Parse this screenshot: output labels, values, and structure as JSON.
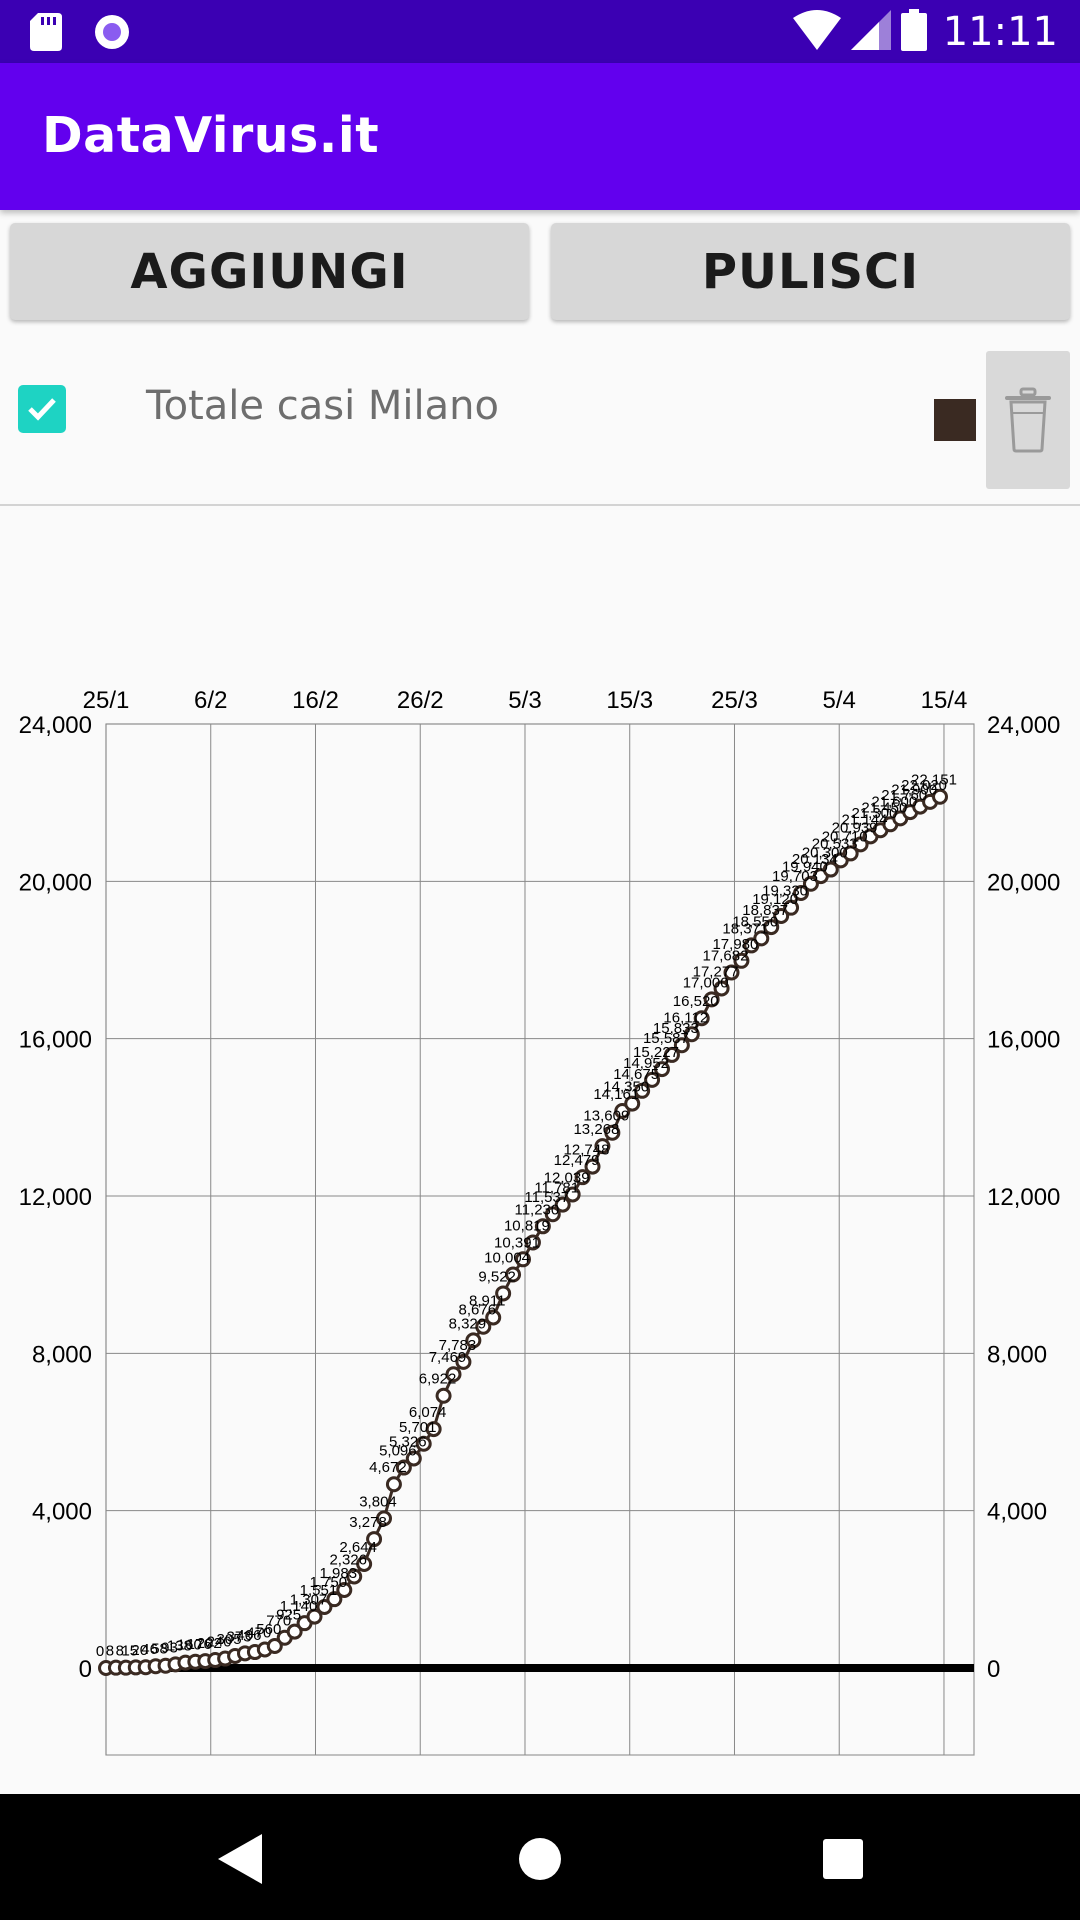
{
  "status_bar": {
    "time": "11:11",
    "left_icons": [
      "sd-card-icon",
      "record-icon"
    ],
    "right_icons": [
      "wifi-icon",
      "cell-signal-icon",
      "battery-icon"
    ]
  },
  "app_bar": {
    "title": "DataVirus.it"
  },
  "toolbar": {
    "add_label": "AGGIUNGI",
    "clear_label": "PULISCI"
  },
  "series_item": {
    "checked": true,
    "label": "Totale casi Milano",
    "color": "#3a2a22",
    "delete_icon": "trash-icon"
  },
  "colors": {
    "status_bar": "#3b00b3",
    "app_bar": "#6200ee",
    "checkbox": "#1ed3c3",
    "series": "#3a2a22"
  },
  "chart_data": {
    "type": "line",
    "x_axis_position": "top",
    "x_tick_labels": [
      "25/1",
      "6/2",
      "16/2",
      "26/2",
      "5/3",
      "15/3",
      "25/3",
      "5/4",
      "15/4"
    ],
    "y_tick_labels": [
      "0",
      "4,000",
      "8,000",
      "12,000",
      "16,000",
      "20,000",
      "24,000"
    ],
    "ylim": [
      0,
      24000
    ],
    "grid": true,
    "dual_y_axis": true,
    "series": [
      {
        "label": "Totale casi Milano",
        "x": [
          "25/1",
          "26/1",
          "27/1",
          "28/1",
          "29/1",
          "30/1",
          "31/1",
          "1/2",
          "2/2",
          "3/2",
          "4/2",
          "5/2",
          "6/2",
          "7/2",
          "8/2",
          "9/2",
          "10/2",
          "11/2",
          "12/2",
          "13/2",
          "14/2",
          "15/2",
          "16/2",
          "17/2",
          "18/2",
          "19/2",
          "20/2",
          "21/2",
          "22/2",
          "23/2",
          "24/2",
          "25/2",
          "26/2",
          "27/2",
          "28/2",
          "29/2",
          "1/3",
          "2/3",
          "3/3",
          "4/3",
          "5/3",
          "6/3",
          "7/3",
          "8/3",
          "9/3",
          "10/3",
          "11/3",
          "12/3",
          "13/3",
          "14/3",
          "15/3",
          "16/3",
          "17/3",
          "18/3",
          "19/3",
          "20/3",
          "21/3",
          "22/3",
          "23/3",
          "24/3",
          "25/3",
          "26/3",
          "27/3",
          "28/3",
          "29/3",
          "30/3",
          "31/3",
          "1/4",
          "2/4",
          "3/4",
          "4/4",
          "5/4",
          "6/4",
          "7/4",
          "8/4",
          "9/4",
          "10/4",
          "11/4",
          "12/4",
          "13/4",
          "14/4",
          "15/4",
          "16/4",
          "17/4",
          "18/4"
        ],
        "values": [
          0,
          8,
          8,
          15,
          20,
          46,
          58,
          93,
          138,
          160,
          176,
          202,
          240,
          305,
          373,
          406,
          470,
          560,
          770,
          925,
          1140,
          1307,
          1551,
          1750,
          1983,
          2326,
          2644,
          3278,
          3804,
          4672,
          5096,
          5326,
          5701,
          6074,
          6922,
          7469,
          7783,
          8329,
          8676,
          8911,
          9522,
          10004,
          10391,
          10819,
          11230,
          11537,
          11781,
          12039,
          12479,
          12748,
          13268,
          13609,
          14161,
          14350,
          14675,
          14952,
          15227,
          15587,
          15833,
          16112,
          16520,
          17000,
          17277,
          17682,
          17980,
          18371,
          18550,
          18837,
          19120,
          19330,
          19703,
          19940,
          20134,
          20300,
          20533,
          20710,
          20939,
          21144,
          21300,
          21450,
          21600,
          21760,
          21900,
          22020,
          22151
        ],
        "point_labels": [
          "0",
          "8",
          "8",
          "15",
          "20",
          "46",
          "58",
          "93",
          "138",
          "160",
          "176",
          "202",
          "240",
          "305",
          "373",
          "406",
          "470",
          "560",
          "770",
          "925",
          "1,140",
          "1,307",
          "1,551",
          "1,750",
          "1,983",
          "2,326",
          "2,644",
          "3,278",
          "3,804",
          "4,672",
          "5,096",
          "5,326",
          "5,701",
          "6,074",
          "6,922",
          "7,469",
          "7,783",
          "8,329",
          "8,676",
          "8,911",
          "9,522",
          "10,004",
          "10,391",
          "10,819",
          "11,230",
          "11,537",
          "11,781",
          "12,039",
          "12,479",
          "12,748",
          "13,268",
          "13,609",
          "14,161",
          "14,350",
          "14,675",
          "14,952",
          "15,227",
          "15,587",
          "15,833",
          "16,112",
          "16,520",
          "17,000",
          "17,277",
          "17,682",
          "17,980",
          "18,371",
          "18,550",
          "18,837",
          "19,120",
          "19,330",
          "19,703",
          "19,940",
          "20,134",
          "20,300",
          "20,533",
          "20,710",
          "20,939",
          "21,144",
          "21,300",
          "21,450",
          "21,600",
          "21,760",
          "21,900",
          "22,020",
          "22,151"
        ]
      }
    ]
  }
}
